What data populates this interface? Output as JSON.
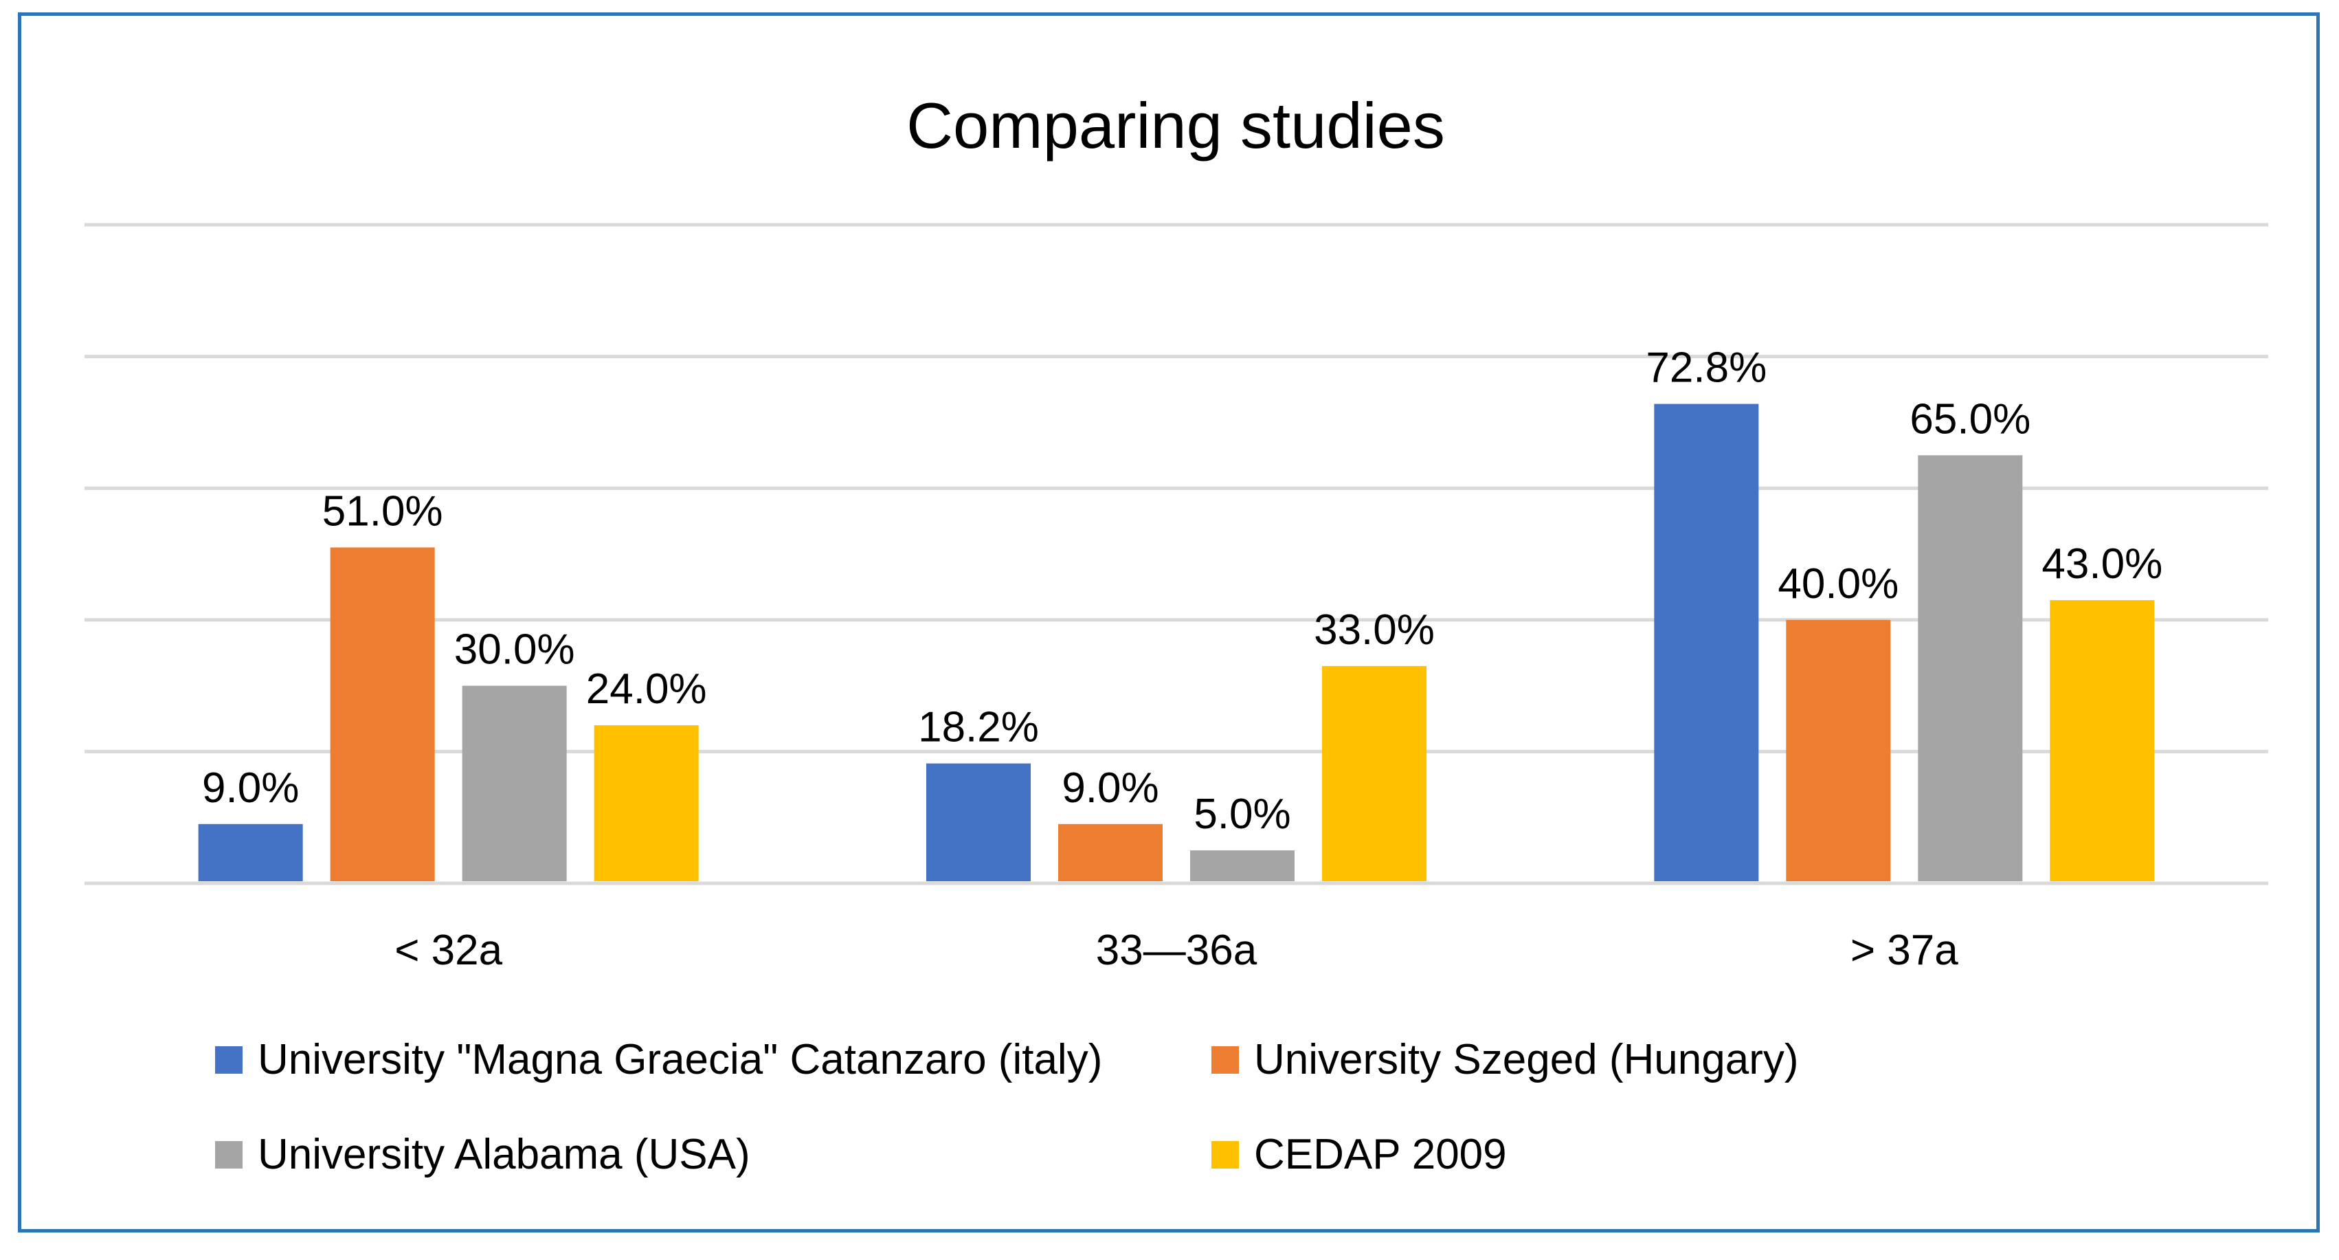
{
  "chart_data": {
    "type": "bar",
    "title": "Comparing studies",
    "xlabel": "",
    "ylabel": "",
    "ylim": [
      0,
      100
    ],
    "grid": true,
    "legend_position": "bottom",
    "categories": [
      "< 32a",
      "33—36a",
      "> 37a"
    ],
    "series": [
      {
        "name": "University \"Magna Graecia\" Catanzaro (italy)",
        "color": "#4472c4",
        "values": [
          9.0,
          18.2,
          72.8
        ],
        "labels": [
          "9.0%",
          "18.2%",
          "72.8%"
        ]
      },
      {
        "name": "University Szeged (Hungary)",
        "color": "#ed7d31",
        "values": [
          51.0,
          9.0,
          40.0
        ],
        "labels": [
          "51.0%",
          "9.0%",
          "40.0%"
        ]
      },
      {
        "name": "University Alabama (USA)",
        "color": "#a5a5a5",
        "values": [
          30.0,
          5.0,
          65.0
        ],
        "labels": [
          "30.0%",
          "5.0%",
          "65.0%"
        ]
      },
      {
        "name": "CEDAP 2009",
        "color": "#ffc000",
        "values": [
          24.0,
          33.0,
          43.0
        ],
        "labels": [
          "24.0%",
          "33.0%",
          "43.0%"
        ]
      }
    ]
  }
}
